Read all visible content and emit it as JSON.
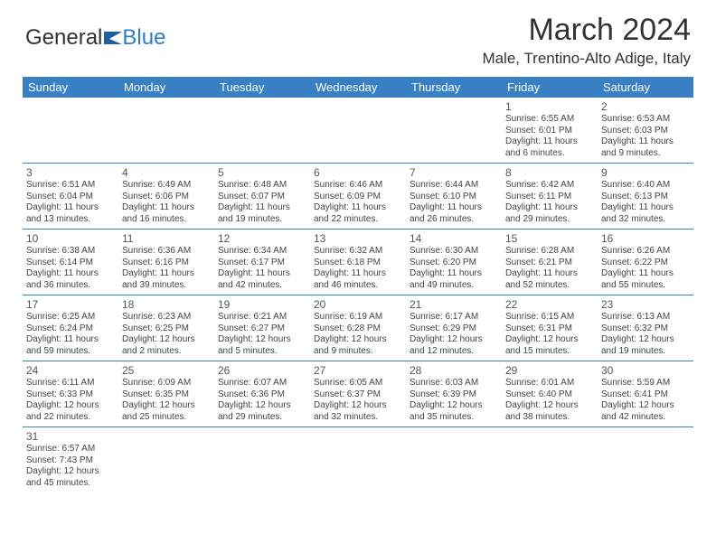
{
  "brand": {
    "part1": "General",
    "part2": "Blue",
    "iconColor": "#1f5f9e"
  },
  "title": "March 2024",
  "location": "Male, Trentino-Alto Adige, Italy",
  "colors": {
    "headerBlue": "#3880c3",
    "textGray": "#444444",
    "background": "#ffffff"
  },
  "dayHeaders": [
    "Sunday",
    "Monday",
    "Tuesday",
    "Wednesday",
    "Thursday",
    "Friday",
    "Saturday"
  ],
  "weeks": [
    [
      null,
      null,
      null,
      null,
      null,
      {
        "d": "1",
        "sr": "Sunrise: 6:55 AM",
        "ss": "Sunset: 6:01 PM",
        "dl1": "Daylight: 11 hours",
        "dl2": "and 6 minutes."
      },
      {
        "d": "2",
        "sr": "Sunrise: 6:53 AM",
        "ss": "Sunset: 6:03 PM",
        "dl1": "Daylight: 11 hours",
        "dl2": "and 9 minutes."
      }
    ],
    [
      {
        "d": "3",
        "sr": "Sunrise: 6:51 AM",
        "ss": "Sunset: 6:04 PM",
        "dl1": "Daylight: 11 hours",
        "dl2": "and 13 minutes."
      },
      {
        "d": "4",
        "sr": "Sunrise: 6:49 AM",
        "ss": "Sunset: 6:06 PM",
        "dl1": "Daylight: 11 hours",
        "dl2": "and 16 minutes."
      },
      {
        "d": "5",
        "sr": "Sunrise: 6:48 AM",
        "ss": "Sunset: 6:07 PM",
        "dl1": "Daylight: 11 hours",
        "dl2": "and 19 minutes."
      },
      {
        "d": "6",
        "sr": "Sunrise: 6:46 AM",
        "ss": "Sunset: 6:09 PM",
        "dl1": "Daylight: 11 hours",
        "dl2": "and 22 minutes."
      },
      {
        "d": "7",
        "sr": "Sunrise: 6:44 AM",
        "ss": "Sunset: 6:10 PM",
        "dl1": "Daylight: 11 hours",
        "dl2": "and 26 minutes."
      },
      {
        "d": "8",
        "sr": "Sunrise: 6:42 AM",
        "ss": "Sunset: 6:11 PM",
        "dl1": "Daylight: 11 hours",
        "dl2": "and 29 minutes."
      },
      {
        "d": "9",
        "sr": "Sunrise: 6:40 AM",
        "ss": "Sunset: 6:13 PM",
        "dl1": "Daylight: 11 hours",
        "dl2": "and 32 minutes."
      }
    ],
    [
      {
        "d": "10",
        "sr": "Sunrise: 6:38 AM",
        "ss": "Sunset: 6:14 PM",
        "dl1": "Daylight: 11 hours",
        "dl2": "and 36 minutes."
      },
      {
        "d": "11",
        "sr": "Sunrise: 6:36 AM",
        "ss": "Sunset: 6:16 PM",
        "dl1": "Daylight: 11 hours",
        "dl2": "and 39 minutes."
      },
      {
        "d": "12",
        "sr": "Sunrise: 6:34 AM",
        "ss": "Sunset: 6:17 PM",
        "dl1": "Daylight: 11 hours",
        "dl2": "and 42 minutes."
      },
      {
        "d": "13",
        "sr": "Sunrise: 6:32 AM",
        "ss": "Sunset: 6:18 PM",
        "dl1": "Daylight: 11 hours",
        "dl2": "and 46 minutes."
      },
      {
        "d": "14",
        "sr": "Sunrise: 6:30 AM",
        "ss": "Sunset: 6:20 PM",
        "dl1": "Daylight: 11 hours",
        "dl2": "and 49 minutes."
      },
      {
        "d": "15",
        "sr": "Sunrise: 6:28 AM",
        "ss": "Sunset: 6:21 PM",
        "dl1": "Daylight: 11 hours",
        "dl2": "and 52 minutes."
      },
      {
        "d": "16",
        "sr": "Sunrise: 6:26 AM",
        "ss": "Sunset: 6:22 PM",
        "dl1": "Daylight: 11 hours",
        "dl2": "and 55 minutes."
      }
    ],
    [
      {
        "d": "17",
        "sr": "Sunrise: 6:25 AM",
        "ss": "Sunset: 6:24 PM",
        "dl1": "Daylight: 11 hours",
        "dl2": "and 59 minutes."
      },
      {
        "d": "18",
        "sr": "Sunrise: 6:23 AM",
        "ss": "Sunset: 6:25 PM",
        "dl1": "Daylight: 12 hours",
        "dl2": "and 2 minutes."
      },
      {
        "d": "19",
        "sr": "Sunrise: 6:21 AM",
        "ss": "Sunset: 6:27 PM",
        "dl1": "Daylight: 12 hours",
        "dl2": "and 5 minutes."
      },
      {
        "d": "20",
        "sr": "Sunrise: 6:19 AM",
        "ss": "Sunset: 6:28 PM",
        "dl1": "Daylight: 12 hours",
        "dl2": "and 9 minutes."
      },
      {
        "d": "21",
        "sr": "Sunrise: 6:17 AM",
        "ss": "Sunset: 6:29 PM",
        "dl1": "Daylight: 12 hours",
        "dl2": "and 12 minutes."
      },
      {
        "d": "22",
        "sr": "Sunrise: 6:15 AM",
        "ss": "Sunset: 6:31 PM",
        "dl1": "Daylight: 12 hours",
        "dl2": "and 15 minutes."
      },
      {
        "d": "23",
        "sr": "Sunrise: 6:13 AM",
        "ss": "Sunset: 6:32 PM",
        "dl1": "Daylight: 12 hours",
        "dl2": "and 19 minutes."
      }
    ],
    [
      {
        "d": "24",
        "sr": "Sunrise: 6:11 AM",
        "ss": "Sunset: 6:33 PM",
        "dl1": "Daylight: 12 hours",
        "dl2": "and 22 minutes."
      },
      {
        "d": "25",
        "sr": "Sunrise: 6:09 AM",
        "ss": "Sunset: 6:35 PM",
        "dl1": "Daylight: 12 hours",
        "dl2": "and 25 minutes."
      },
      {
        "d": "26",
        "sr": "Sunrise: 6:07 AM",
        "ss": "Sunset: 6:36 PM",
        "dl1": "Daylight: 12 hours",
        "dl2": "and 29 minutes."
      },
      {
        "d": "27",
        "sr": "Sunrise: 6:05 AM",
        "ss": "Sunset: 6:37 PM",
        "dl1": "Daylight: 12 hours",
        "dl2": "and 32 minutes."
      },
      {
        "d": "28",
        "sr": "Sunrise: 6:03 AM",
        "ss": "Sunset: 6:39 PM",
        "dl1": "Daylight: 12 hours",
        "dl2": "and 35 minutes."
      },
      {
        "d": "29",
        "sr": "Sunrise: 6:01 AM",
        "ss": "Sunset: 6:40 PM",
        "dl1": "Daylight: 12 hours",
        "dl2": "and 38 minutes."
      },
      {
        "d": "30",
        "sr": "Sunrise: 5:59 AM",
        "ss": "Sunset: 6:41 PM",
        "dl1": "Daylight: 12 hours",
        "dl2": "and 42 minutes."
      }
    ],
    [
      {
        "d": "31",
        "sr": "Sunrise: 6:57 AM",
        "ss": "Sunset: 7:43 PM",
        "dl1": "Daylight: 12 hours",
        "dl2": "and 45 minutes."
      },
      null,
      null,
      null,
      null,
      null,
      null
    ]
  ]
}
